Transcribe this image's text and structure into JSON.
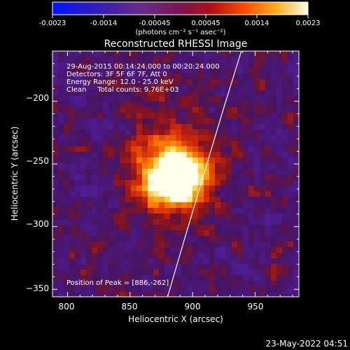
{
  "chart_data": {
    "type": "heatmap",
    "title": "Reconstructed RHESSI Image",
    "xlabel": "Heliocentric X (arcsec)",
    "ylabel": "Heliocentric Y (arcsec)",
    "xlim": [
      788,
      985
    ],
    "ylim": [
      -356,
      -160
    ],
    "x_ticks": [
      800,
      850,
      900,
      950
    ],
    "y_ticks": [
      -200,
      -250,
      -300,
      -350
    ],
    "colorbar": {
      "ticks": [
        "-0.0023",
        "-0.0014",
        "-0.00045",
        "0.00045",
        "0.0014",
        "0.0023"
      ],
      "unit_label": "(photons cm⁻² s⁻¹ asec⁻²)",
      "range": [
        -0.0023,
        0.0023
      ]
    },
    "annotations": {
      "line1": "29-Aug-2015 00:14:24.000 to 00:20:24.000",
      "line2": "Detectors: 3F 5F 6F 7F, Att 0",
      "line3": "Energy Range: 12.0 - 25.0 keV",
      "line4": "Clean     Total counts: 9.76E+03",
      "peak": "Position of Peak = [886,-262]"
    },
    "peak": {
      "x": 886,
      "y": -262
    },
    "limb_points": [
      [
        880,
        -356
      ],
      [
        895,
        -305
      ],
      [
        910,
        -255
      ],
      [
        925,
        -205
      ],
      [
        939,
        -160
      ]
    ],
    "timestamp": "23-May-2022 04:51",
    "colors": {
      "background": "#000000",
      "limb": "#ffffff"
    }
  }
}
